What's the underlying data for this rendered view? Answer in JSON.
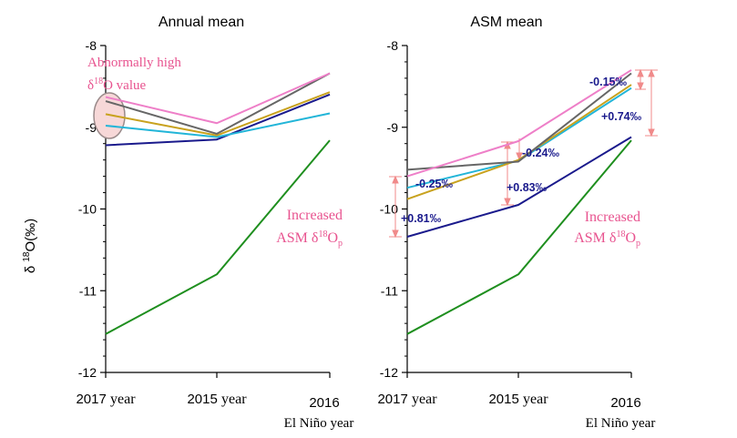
{
  "chart_data": [
    {
      "type": "line",
      "title": "Annual mean",
      "ylabel_prefix": "δ ",
      "ylabel_sup": "18",
      "ylabel_suffix": "O(‰)",
      "ylim": [
        -12,
        -8
      ],
      "yticks": [
        -12,
        -11,
        -10,
        -9,
        -8
      ],
      "yticklabels": [
        "-12",
        "-11",
        "-10",
        "-9",
        "-8"
      ],
      "grid": false,
      "categories": [
        {
          "num": "2017",
          "word": "year",
          "sub": ""
        },
        {
          "num": "2015",
          "word": "year",
          "sub": ""
        },
        {
          "num": "2016",
          "word": "",
          "sub": "El Niño year"
        }
      ],
      "series": [
        {
          "color": "#1f8f1f",
          "values": [
            -11.53,
            -10.8,
            -9.16
          ]
        },
        {
          "color": "#1a1a8c",
          "values": [
            -9.22,
            -9.15,
            -8.6
          ]
        },
        {
          "color": "#22b5d8",
          "values": [
            -8.98,
            -9.12,
            -8.83
          ]
        },
        {
          "color": "#c8a21e",
          "values": [
            -8.84,
            -9.1,
            -8.57
          ]
        },
        {
          "color": "#666666",
          "values": [
            -8.68,
            -9.08,
            -8.34
          ]
        },
        {
          "color": "#ee7fc8",
          "values": [
            -8.63,
            -8.95,
            -8.34
          ]
        }
      ],
      "annotations": {
        "abnormal_line1": "Abnormally high",
        "abnormal_delta": "δ",
        "abnormal_sup": "18",
        "abnormal_line2": "O value",
        "increased_line1": "Increased",
        "increased_asm": "ASM δ",
        "increased_sup": "18",
        "increased_o": "O",
        "increased_sub": "p"
      }
    },
    {
      "type": "line",
      "title": "ASM mean",
      "ylim": [
        -12,
        -8
      ],
      "yticks": [
        -12,
        -11,
        -10,
        -9,
        -8
      ],
      "yticklabels": [
        "-12",
        "-11",
        "-10",
        "-9",
        "-8"
      ],
      "grid": false,
      "categories": [
        {
          "num": "2017",
          "word": "year",
          "sub": ""
        },
        {
          "num": "2015",
          "word": "year",
          "sub": ""
        },
        {
          "num": "2016",
          "word": "",
          "sub": "El Niño year"
        }
      ],
      "series": [
        {
          "color": "#1f8f1f",
          "values": [
            -11.53,
            -10.8,
            -9.16
          ]
        },
        {
          "color": "#1a1a8c",
          "values": [
            -10.34,
            -9.95,
            -9.12
          ]
        },
        {
          "color": "#22b5d8",
          "values": [
            -9.74,
            -9.41,
            -8.52
          ]
        },
        {
          "color": "#c8a21e",
          "values": [
            -9.88,
            -9.4,
            -8.48
          ]
        },
        {
          "color": "#666666",
          "values": [
            -9.52,
            -9.42,
            -8.34
          ]
        },
        {
          "color": "#ee7fc8",
          "values": [
            -9.6,
            -9.17,
            -8.3
          ]
        }
      ],
      "annotations": {
        "increased_line1": "Increased",
        "increased_asm": "ASM δ",
        "increased_sup": "18",
        "increased_o": "O",
        "increased_sub": "p",
        "value_labels": [
          {
            "text": "-0.25‰",
            "color": "#1a1a8c"
          },
          {
            "text": "+0.81‰",
            "color": "#1a1a8c"
          },
          {
            "text": "+0.83‰",
            "color": "#1a1a8c"
          },
          {
            "text": "-0.24‰",
            "color": "#1a1a8c"
          },
          {
            "text": "-0.15‰",
            "color": "#1a1a8c"
          },
          {
            "text": "+0.74‰",
            "color": "#1a1a8c"
          }
        ]
      }
    }
  ],
  "colors": {
    "axis": "#000000",
    "annotation_pink": "#e8538f",
    "bracket": "#f08a8a",
    "ellipse_fill": "#f7d8d8",
    "ellipse_stroke": "#9a8a8a"
  }
}
